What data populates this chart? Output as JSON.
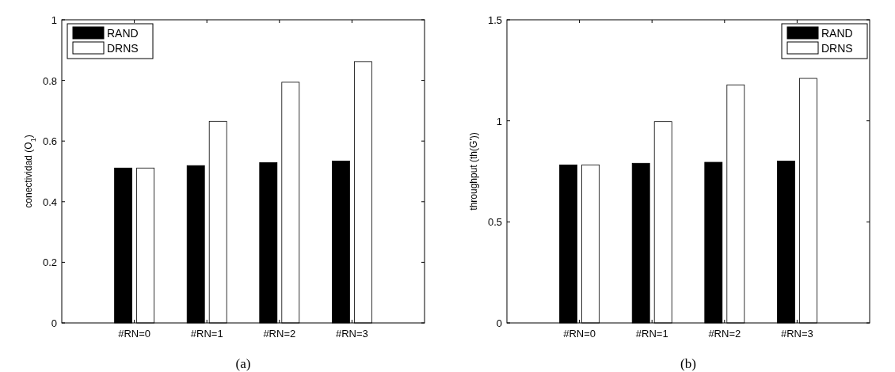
{
  "chart_data": [
    {
      "type": "bar",
      "categories": [
        "#RN=0",
        "#RN=1",
        "#RN=2",
        "#RN=3"
      ],
      "ylabel": "conectividad (O$_{1}$)",
      "ylim": [
        0,
        1
      ],
      "yticks": [
        0,
        0.2,
        0.4,
        0.6,
        0.8,
        1
      ],
      "legend": "top left",
      "annotations": [
        "(a)"
      ],
      "series": [
        {
          "name": "RAND",
          "color": "#000000",
          "values": [
            0.511,
            0.519,
            0.529,
            0.534
          ]
        },
        {
          "name": "DRNS",
          "color": "#ffffff",
          "values": [
            0.511,
            0.665,
            0.794,
            0.862
          ]
        }
      ]
    },
    {
      "type": "bar",
      "categories": [
        "#RN=0",
        "#RN=1",
        "#RN=2",
        "#RN=3"
      ],
      "ylabel": "throughput (th(G'))",
      "ylim": [
        0,
        1.5
      ],
      "yticks": [
        0,
        0.5,
        1,
        1.5
      ],
      "legend": "top right",
      "annotations": [
        "(b)"
      ],
      "series": [
        {
          "name": "RAND",
          "color": "#000000",
          "values": [
            0.782,
            0.79,
            0.795,
            0.801
          ]
        },
        {
          "name": "DRNS",
          "color": "#ffffff",
          "values": [
            0.782,
            0.996,
            1.178,
            1.21
          ]
        }
      ]
    }
  ]
}
